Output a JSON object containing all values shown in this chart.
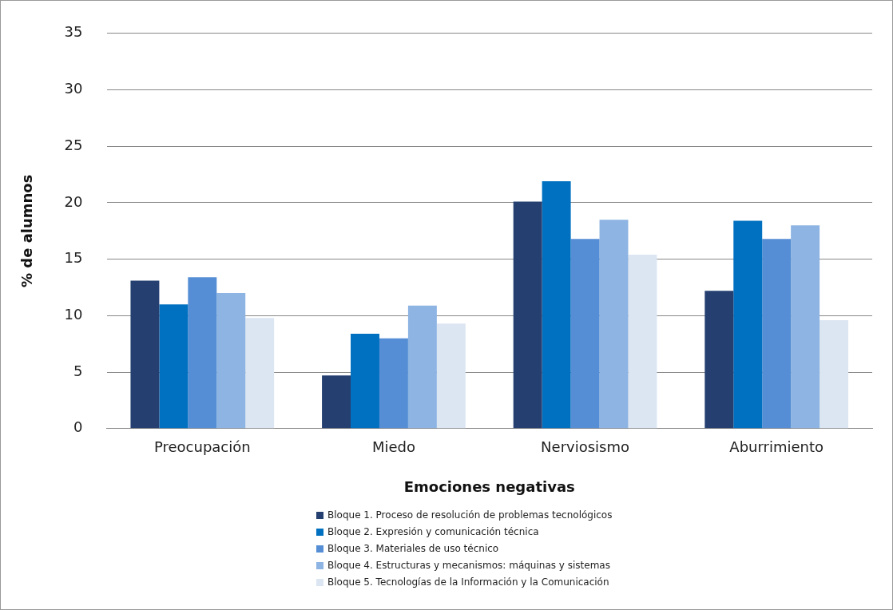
{
  "chart_data": {
    "type": "bar",
    "xlabel": "Emociones negativas",
    "ylabel": "% de alumnos",
    "categories": [
      "Preocupación",
      "Miedo",
      "Nerviosismo",
      "Aburrimiento"
    ],
    "series": [
      {
        "name": "Bloque 1. Proceso de resolución de problemas tecnológicos",
        "color": "#243f70",
        "values": [
          13.1,
          4.7,
          20.1,
          12.2
        ]
      },
      {
        "name": "Bloque 2. Expresión y comunicación técnica",
        "color": "#0070c0",
        "values": [
          11.0,
          8.4,
          21.9,
          18.4
        ]
      },
      {
        "name": "Bloque 3. Materiales de uso técnico",
        "color": "#558ed5",
        "values": [
          13.4,
          8.0,
          16.8,
          16.8
        ]
      },
      {
        "name": "Bloque 4. Estructuras y mecanismos: máquinas y sistemas",
        "color": "#8db4e2",
        "values": [
          12.0,
          10.9,
          18.5,
          18.0
        ]
      },
      {
        "name": "Bloque 5. Tecnologías de la Información y la Comunicación",
        "color": "#dce6f2",
        "values": [
          9.8,
          9.3,
          15.4,
          9.6
        ]
      }
    ],
    "ylim": [
      0,
      35
    ],
    "yticks": [
      0,
      5,
      10,
      15,
      20,
      25,
      30,
      35
    ],
    "grid": "y",
    "legend": "bottom"
  }
}
